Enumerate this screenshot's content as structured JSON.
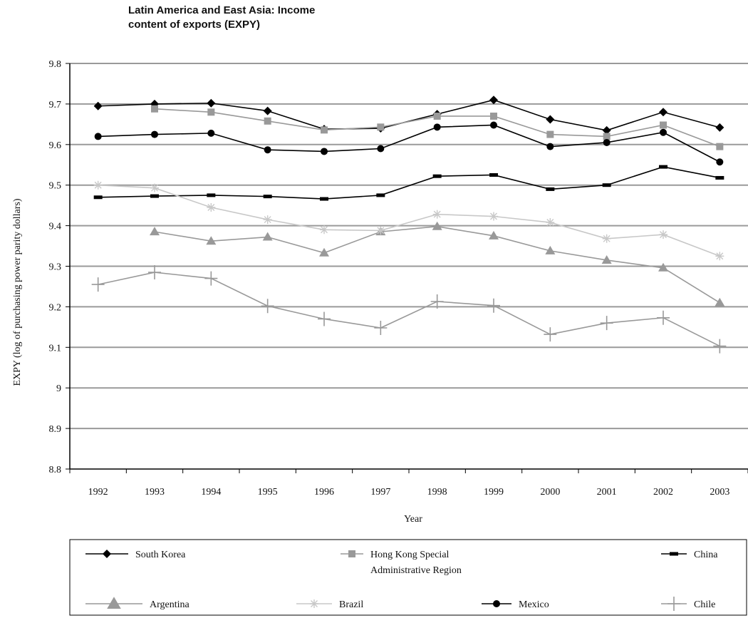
{
  "chart_data": {
    "type": "line",
    "title_line1": "Latin America and East Asia: Income",
    "title_line2": "content of exports (EXPY)",
    "xlabel": "Year",
    "ylabel": "EXPY (log of purchasing power parity dollars)",
    "categories": [
      "1992",
      "1993",
      "1994",
      "1995",
      "1996",
      "1997",
      "1998",
      "1999",
      "2000",
      "2001",
      "2002",
      "2003"
    ],
    "ylim": [
      8.8,
      9.8
    ],
    "yticks": [
      "9.8",
      "9.7",
      "9.6",
      "9.5",
      "9.4",
      "9.3",
      "9.2",
      "9.1",
      "9",
      "8.9",
      "8.8"
    ],
    "ytick_values": [
      9.8,
      9.7,
      9.6,
      9.5,
      9.4,
      9.3,
      9.2,
      9.1,
      9.0,
      8.9,
      8.8
    ],
    "grid": true,
    "legend_position": "bottom",
    "series": [
      {
        "name": "South Korea",
        "color": "#000000",
        "marker": "diamond",
        "values": [
          9.695,
          9.7,
          9.702,
          9.683,
          9.638,
          9.64,
          9.675,
          9.71,
          9.662,
          9.635,
          9.68,
          9.642
        ]
      },
      {
        "name": "Hong Kong Special Administrative Region",
        "name_line1": "Hong Kong Special",
        "name_line2": "Administrative Region",
        "color": "#999999",
        "marker": "square",
        "values": [
          null,
          9.688,
          9.68,
          9.658,
          9.636,
          9.643,
          9.67,
          9.67,
          9.625,
          9.62,
          9.648,
          9.595
        ]
      },
      {
        "name": "China",
        "color": "#000000",
        "marker": "dash",
        "values": [
          9.47,
          9.473,
          9.475,
          9.472,
          9.466,
          9.475,
          9.522,
          9.525,
          9.49,
          9.5,
          9.545,
          9.518
        ]
      },
      {
        "name": "Argentina",
        "color": "#999999",
        "marker": "triangle",
        "values": [
          null,
          9.385,
          9.362,
          9.372,
          9.333,
          9.385,
          9.398,
          9.375,
          9.338,
          9.315,
          9.296,
          9.21
        ]
      },
      {
        "name": "Brazil",
        "color": "#c8c8c8",
        "marker": "star",
        "values": [
          9.5,
          9.493,
          9.445,
          9.415,
          9.39,
          9.388,
          9.428,
          9.423,
          9.408,
          9.368,
          9.378,
          9.325
        ]
      },
      {
        "name": "Mexico",
        "color": "#000000",
        "marker": "circle",
        "values": [
          9.62,
          9.625,
          9.628,
          9.587,
          9.583,
          9.59,
          9.643,
          9.648,
          9.595,
          9.605,
          9.63,
          9.557
        ]
      },
      {
        "name": "Chile",
        "color": "#999999",
        "marker": "plus",
        "values": [
          9.255,
          9.285,
          9.27,
          9.202,
          9.17,
          9.148,
          9.213,
          9.203,
          9.132,
          9.16,
          9.173,
          9.103
        ]
      }
    ]
  }
}
